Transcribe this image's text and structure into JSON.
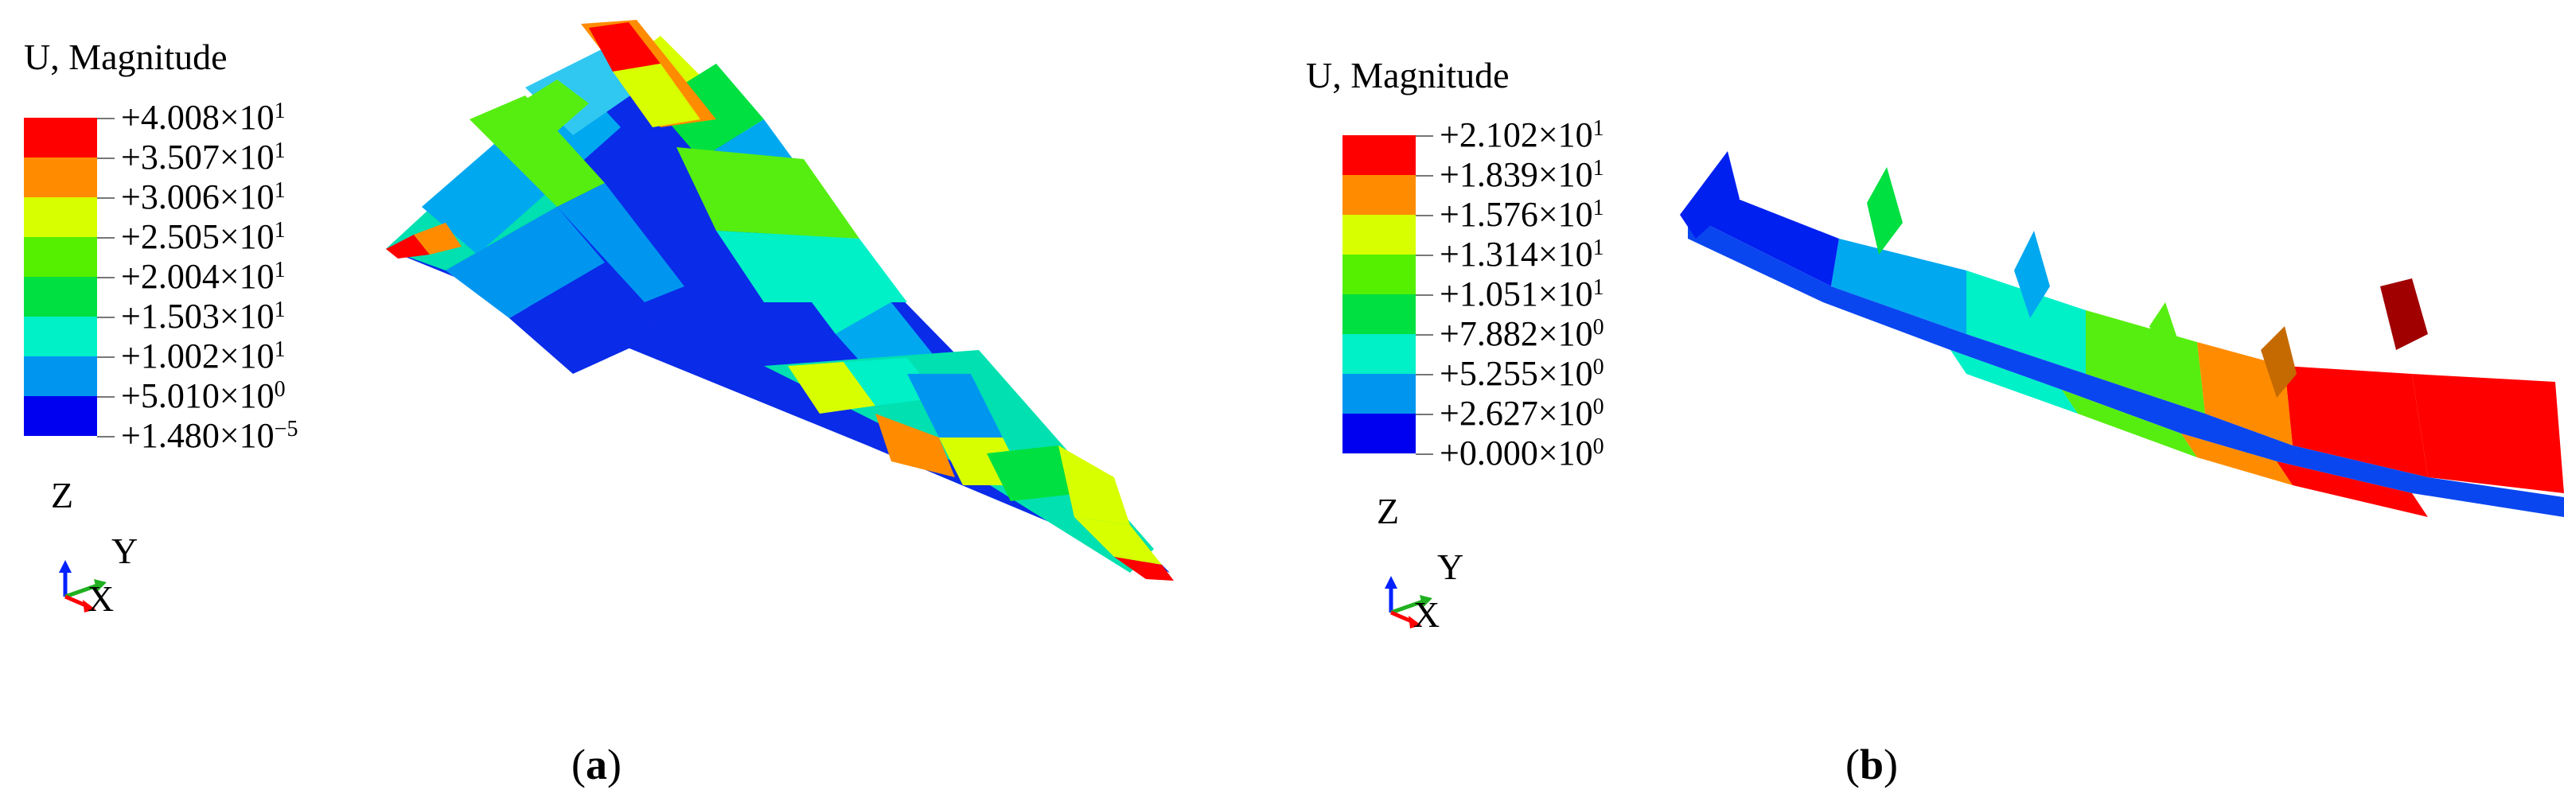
{
  "panels": [
    {
      "id": "a",
      "legend_title": "U, Magnitude",
      "caption_letter": "a",
      "legend_entries": [
        {
          "mantissa": "+4.008",
          "exponent": "1"
        },
        {
          "mantissa": "+3.507",
          "exponent": "1"
        },
        {
          "mantissa": "+3.006",
          "exponent": "1"
        },
        {
          "mantissa": "+2.505",
          "exponent": "1"
        },
        {
          "mantissa": "+2.004",
          "exponent": "1"
        },
        {
          "mantissa": "+1.503",
          "exponent": "1"
        },
        {
          "mantissa": "+1.002",
          "exponent": "1"
        },
        {
          "mantissa": "+5.010",
          "exponent": "0"
        },
        {
          "mantissa": "+1.480",
          "exponent": "−5"
        }
      ],
      "axes": {
        "z": "Z",
        "y": "Y",
        "x": "X"
      }
    },
    {
      "id": "b",
      "legend_title": "U, Magnitude",
      "caption_letter": "b",
      "legend_entries": [
        {
          "mantissa": "+2.102",
          "exponent": "1"
        },
        {
          "mantissa": "+1.839",
          "exponent": "1"
        },
        {
          "mantissa": "+1.576",
          "exponent": "1"
        },
        {
          "mantissa": "+1.314",
          "exponent": "1"
        },
        {
          "mantissa": "+1.051",
          "exponent": "1"
        },
        {
          "mantissa": "+7.882",
          "exponent": "0"
        },
        {
          "mantissa": "+5.255",
          "exponent": "0"
        },
        {
          "mantissa": "+2.627",
          "exponent": "0"
        },
        {
          "mantissa": "+0.000",
          "exponent": "0"
        }
      ],
      "axes": {
        "z": "Z",
        "y": "Y",
        "x": "X"
      }
    }
  ],
  "contour_colors": [
    "#ff0000",
    "#ff8c00",
    "#d8ff00",
    "#55f000",
    "#00e040",
    "#00f0c8",
    "#0096f0",
    "#0000f0"
  ]
}
